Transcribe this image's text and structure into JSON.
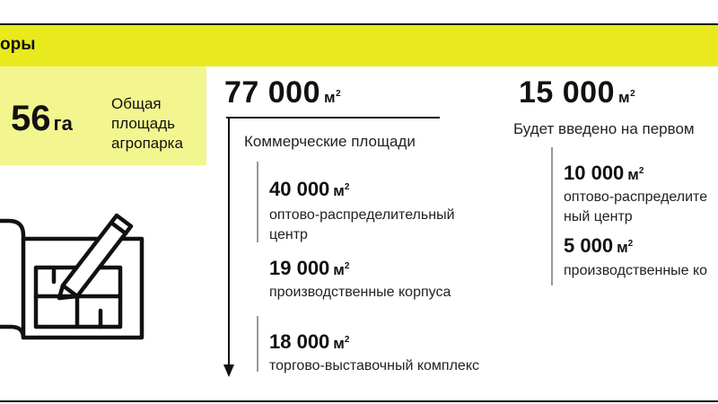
{
  "band": {
    "title": "оры"
  },
  "area": {
    "value": "56",
    "unit": "га",
    "label": "Общая площадь агропарка"
  },
  "commercial": {
    "total_value": "77 000",
    "total_unit": "м",
    "caption": "Коммерческие площади",
    "items": [
      {
        "value": "40 000",
        "unit": "м",
        "label": "оптово-распределительный центр"
      },
      {
        "value": "19 000",
        "unit": "м",
        "label": "производственные корпуса"
      },
      {
        "value": "18 000",
        "unit": "м",
        "label": "торгово-выставочный комплекс"
      }
    ]
  },
  "first_stage": {
    "total_value": "15 000",
    "total_unit": "м",
    "caption": "Будет введено на первом",
    "items": [
      {
        "value": "10 000",
        "unit": "м",
        "label": "оптово-распределите ный центр"
      },
      {
        "value": "5 000",
        "unit": "м",
        "label": "производственные ко"
      }
    ]
  },
  "unit_power": "2",
  "icons": {
    "plan": "blueprint-pencil-icon"
  },
  "colors": {
    "band": "#e8ea1e",
    "area_box": "#f3f58f"
  }
}
